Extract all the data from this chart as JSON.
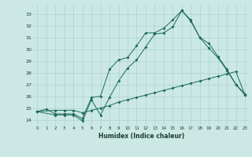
{
  "xlabel": "Humidex (Indice chaleur)",
  "bg_color": "#cce8e4",
  "grid_color": "#aad4cc",
  "line_color": "#1a6b5a",
  "xlim": [
    -0.5,
    23.5
  ],
  "ylim": [
    23.5,
    33.8
  ],
  "xticks": [
    0,
    1,
    2,
    3,
    4,
    5,
    6,
    7,
    8,
    9,
    10,
    11,
    12,
    13,
    14,
    15,
    16,
    17,
    18,
    19,
    20,
    21,
    22,
    23
  ],
  "yticks": [
    24,
    25,
    26,
    27,
    28,
    29,
    30,
    31,
    32,
    33
  ],
  "line1_x": [
    0,
    1,
    2,
    3,
    4,
    5,
    6,
    7,
    8,
    9,
    10,
    11,
    12,
    13,
    14,
    15,
    16,
    17,
    18,
    19,
    20,
    21,
    22,
    23
  ],
  "line1_y": [
    24.7,
    24.9,
    24.5,
    24.5,
    24.5,
    24.1,
    25.9,
    26.0,
    28.3,
    29.1,
    29.3,
    30.3,
    31.4,
    31.4,
    31.8,
    32.5,
    33.3,
    32.5,
    31.0,
    30.5,
    29.4,
    28.3,
    27.0,
    26.2
  ],
  "line2_x": [
    0,
    2,
    3,
    4,
    5,
    6,
    7,
    8,
    9,
    10,
    11,
    12,
    13,
    14,
    15,
    16,
    17,
    18,
    19,
    20,
    21,
    22,
    23
  ],
  "line2_y": [
    24.7,
    24.4,
    24.4,
    24.4,
    23.9,
    25.7,
    24.4,
    25.9,
    27.3,
    28.4,
    29.1,
    30.2,
    31.3,
    31.4,
    31.9,
    33.3,
    32.4,
    31.0,
    30.1,
    29.3,
    28.2,
    27.0,
    26.1
  ],
  "line3_x": [
    0,
    2,
    3,
    4,
    5,
    6,
    7,
    8,
    9,
    10,
    11,
    12,
    13,
    14,
    15,
    16,
    17,
    18,
    19,
    20,
    21,
    22,
    23
  ],
  "line3_y": [
    24.7,
    24.8,
    24.8,
    24.8,
    24.6,
    24.8,
    25.0,
    25.2,
    25.5,
    25.7,
    25.9,
    26.1,
    26.3,
    26.5,
    26.7,
    26.9,
    27.1,
    27.3,
    27.5,
    27.7,
    27.9,
    28.1,
    26.1
  ]
}
